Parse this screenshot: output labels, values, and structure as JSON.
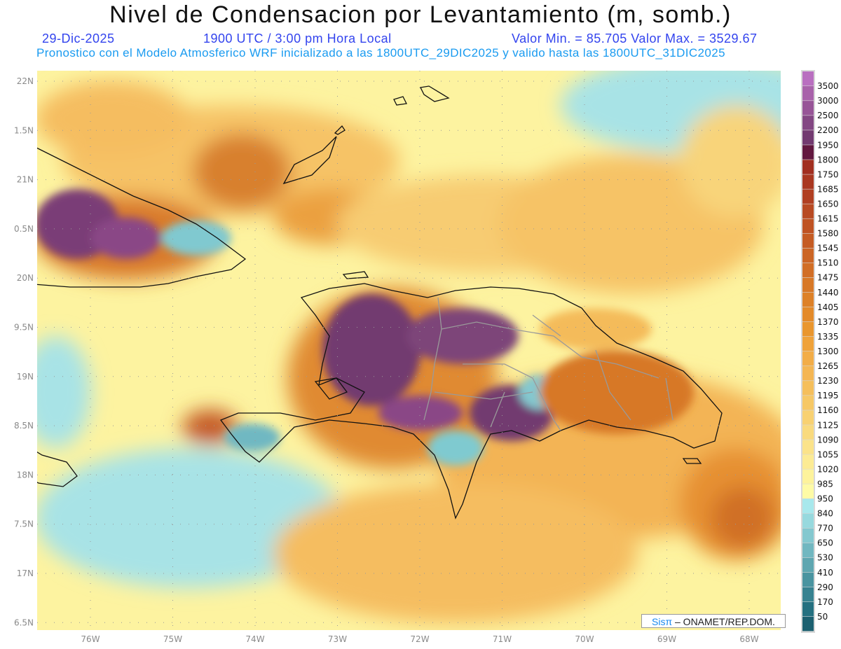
{
  "header": {
    "title": "Nivel de Condensacion por Levantamiento (m, somb.)",
    "date": "29-Dic-2025",
    "time": "1900 UTC / 3:00 pm Hora Local",
    "minmax": "Valor Min. = 85.705  Valor Max. = 3529.67",
    "forecast": "Pronostico con el Modelo Atmosferico WRF inicializado a las 1800UTC_29DIC2025 y valido hasta las  1800UTC_31DIC2025"
  },
  "axes": {
    "lat_labels": [
      "22N",
      "1.5N",
      "21N",
      "0.5N",
      "20N",
      "9.5N",
      "19N",
      "8.5N",
      "18N",
      "7.5N",
      "17N",
      "6.5N"
    ],
    "lon_labels": [
      "76W",
      "75W",
      "74W",
      "73W",
      "72W",
      "71W",
      "70W",
      "69W",
      "68W"
    ]
  },
  "colorbar": {
    "labels": [
      "3500",
      "3000",
      "2500",
      "2200",
      "1950",
      "1800",
      "1750",
      "1685",
      "1650",
      "1615",
      "1580",
      "1545",
      "1510",
      "1475",
      "1440",
      "1405",
      "1370",
      "1335",
      "1300",
      "1265",
      "1230",
      "1195",
      "1160",
      "1125",
      "1090",
      "1055",
      "1020",
      "985",
      "950",
      "840",
      "770",
      "650",
      "530",
      "410",
      "290",
      "170",
      "50"
    ],
    "colors": [
      "#b96fc0",
      "#a862aa",
      "#975597",
      "#834783",
      "#723a70",
      "#62183f",
      "#a12f20",
      "#a93821",
      "#b03f22",
      "#b84a23",
      "#bf5323",
      "#c55c24",
      "#cb6525",
      "#d16e26",
      "#d77827",
      "#dd8128",
      "#e38a2a",
      "#e9962e",
      "#efa23a",
      "#f2ad48",
      "#f4b653",
      "#f5bf5c",
      "#f6c866",
      "#f8d172",
      "#f9da7e",
      "#fbe38a",
      "#fceb94",
      "#fdf39c",
      "#fefba6",
      "#a8e8ec",
      "#97d9de",
      "#84c8cf",
      "#71b7c0",
      "#5ea6b0",
      "#4a94a0",
      "#378290",
      "#257080",
      "#1c6070"
    ]
  },
  "credit": {
    "brand": "Sisπ",
    "text": " –  ONAMET/REP.DOM."
  }
}
